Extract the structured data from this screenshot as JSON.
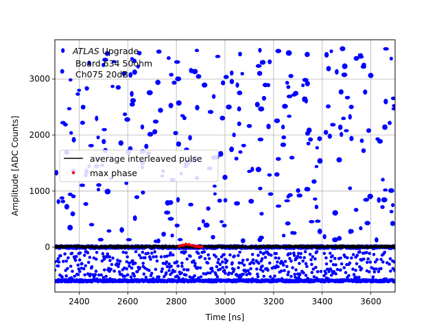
{
  "chart_data": {
    "type": "scatter",
    "xlabel": "Time [ns]",
    "ylabel": "Amplitude [ADC Counts]",
    "xlim": [
      2300,
      3700
    ],
    "ylim": [
      -800,
      3700
    ],
    "xticks": [
      2400,
      2600,
      2800,
      3000,
      3200,
      3400,
      3600
    ],
    "yticks": [
      0,
      1000,
      2000,
      3000
    ],
    "grid": true,
    "legend_position": "center-left",
    "annotation": {
      "line1_italic": "ATLAS",
      "line1_rest": " Upgrade",
      "line2": "Board 634 50ohm",
      "line3": "Ch075 20dB"
    },
    "series": [
      {
        "name": "average interleaved pulse",
        "kind": "line",
        "color": "#000000",
        "x": [
          2300,
          2400,
          2500,
          2600,
          2700,
          2800,
          2900,
          3000,
          3100,
          3200,
          3300,
          3400,
          3500,
          3600,
          3700
        ],
        "y": [
          0,
          0,
          0,
          0,
          0,
          0,
          0,
          0,
          0,
          0,
          0,
          0,
          0,
          0,
          0
        ]
      },
      {
        "name": "max phase",
        "kind": "scatter",
        "color": "#ff0000",
        "x": [
          2813,
          2826,
          2839,
          2852,
          2865,
          2878,
          2891,
          2904
        ],
        "y": [
          20,
          35,
          50,
          45,
          30,
          15,
          10,
          5
        ]
      },
      {
        "name": "",
        "kind": "scatter",
        "color": "#0000ff",
        "description_points": "sampled ADC data points",
        "x_range": [
          2300,
          3700
        ],
        "y_bands": [
          {
            "level": -600,
            "spread": 20,
            "density": 1.0
          },
          {
            "level": -450,
            "spread": 120,
            "density": 0.6
          },
          {
            "level": -200,
            "spread": 120,
            "density": 0.6
          },
          {
            "level": 0,
            "spread": 25,
            "density": 1.0
          }
        ],
        "upper_cluster_y_range": [
          100,
          3550
        ]
      }
    ]
  },
  "colors": {
    "data": "#0000ff",
    "avg_line": "#000000",
    "max_phase": "#ff0000",
    "grid": "#b0b0b0"
  }
}
